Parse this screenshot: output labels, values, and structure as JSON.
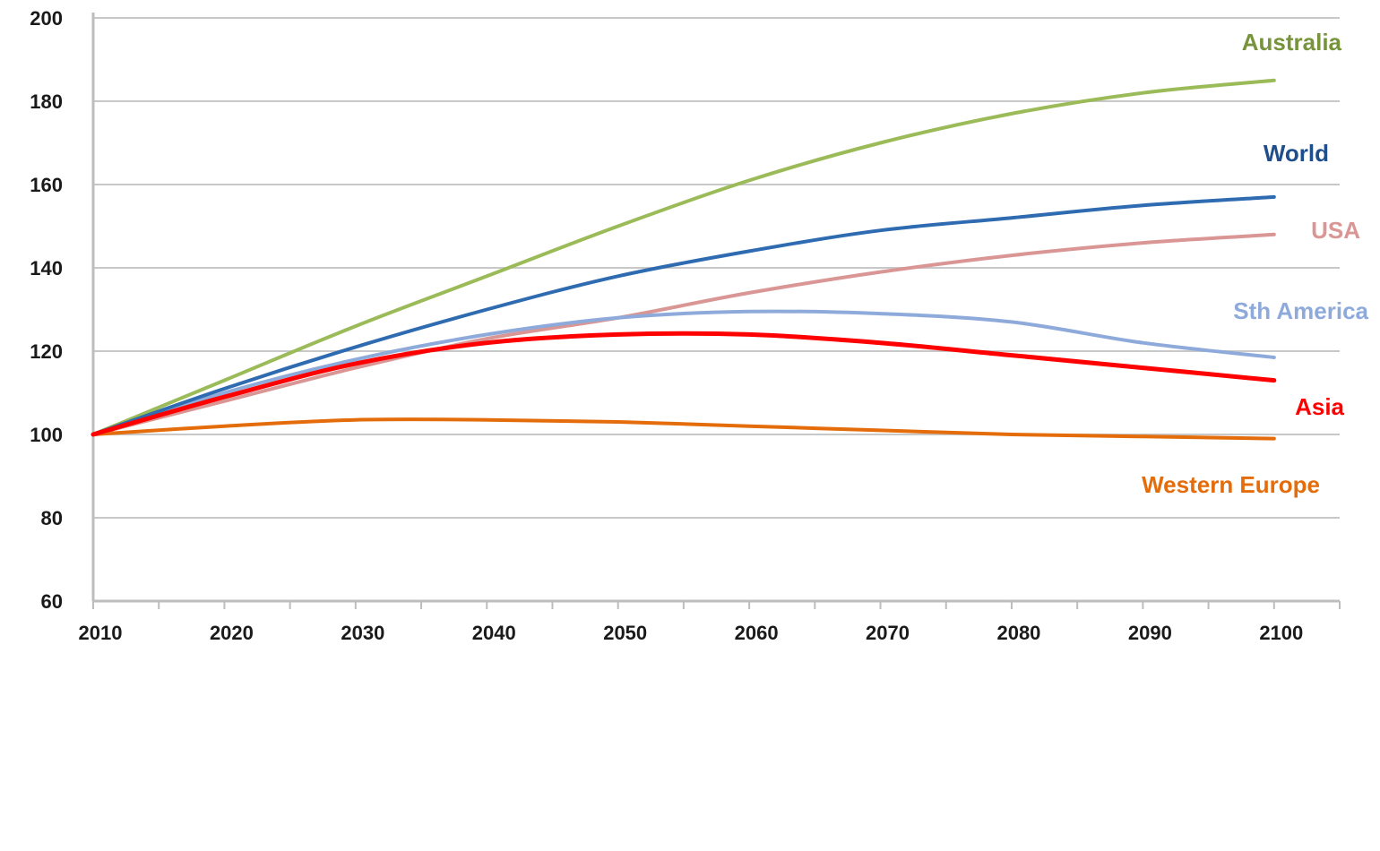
{
  "chart_data": {
    "type": "line",
    "title": "",
    "xlabel": "",
    "ylabel": "",
    "xlim": [
      2010,
      2105
    ],
    "ylim": [
      60,
      200
    ],
    "x_ticks": [
      2010,
      2020,
      2030,
      2040,
      2050,
      2060,
      2070,
      2080,
      2090,
      2100
    ],
    "x_tick_labels": [
      "2010",
      "2020",
      "2030",
      "2040",
      "2050",
      "2060",
      "2070",
      "2080",
      "2090",
      "2100"
    ],
    "y_ticks": [
      60,
      80,
      100,
      120,
      140,
      160,
      180,
      200
    ],
    "y_tick_labels": [
      "60",
      "80",
      "100",
      "120",
      "140",
      "160",
      "180",
      "200"
    ],
    "grid": true,
    "x": [
      2010,
      2020,
      2030,
      2040,
      2050,
      2060,
      2070,
      2080,
      2090,
      2100
    ],
    "series": [
      {
        "name": "Australia",
        "color": "#9bbb59",
        "label_color": "#77933c",
        "values": [
          100,
          113,
          126,
          138,
          150,
          161,
          170,
          177,
          182,
          185
        ]
      },
      {
        "name": "World",
        "color": "#2e6bb0",
        "label_color": "#1f4e8c",
        "values": [
          100,
          111,
          121,
          130,
          138,
          144,
          149,
          152,
          155,
          157
        ]
      },
      {
        "name": "USA",
        "color": "#d99694",
        "label_color": "#d99694",
        "values": [
          100,
          108,
          116,
          123,
          128,
          134,
          139,
          143,
          146,
          148
        ]
      },
      {
        "name": "Sth America",
        "color": "#8eaadb",
        "label_color": "#8eaadb",
        "values": [
          100,
          110,
          118,
          124,
          128,
          129.5,
          129,
          127,
          122,
          118.5
        ]
      },
      {
        "name": "Asia",
        "color": "#ff0000",
        "label_color": "#ff0000",
        "values": [
          100,
          109,
          117,
          122,
          124,
          124,
          122,
          119,
          116,
          113
        ]
      },
      {
        "name": "Western Europe",
        "color": "#e46c0a",
        "label_color": "#e46c0a",
        "values": [
          100,
          102,
          103.5,
          103.5,
          103,
          102,
          101,
          100,
          99.5,
          99
        ]
      }
    ],
    "series_label_placement": "right"
  }
}
